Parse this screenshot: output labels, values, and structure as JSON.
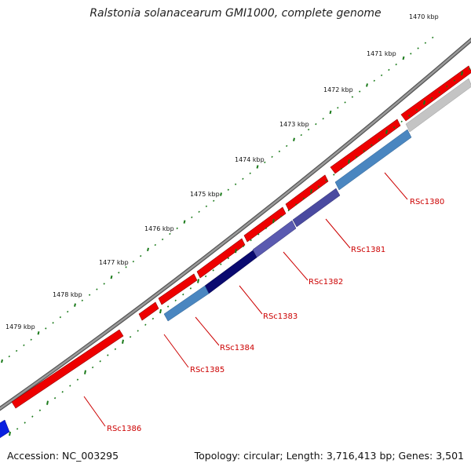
{
  "header": {
    "title": "Ralstonia solanacearum GMI1000, complete genome"
  },
  "footer": {
    "accession": "Accession: NC_003295",
    "summary": "Topology: circular; Length: 3,716,413 bp; Genes: 3,501"
  },
  "scale": {
    "ticks": [
      "1470 kbp",
      "1471 kbp",
      "1472 kbp",
      "1473 kbp",
      "1474 kbp",
      "1475 kbp",
      "1476 kbp",
      "1477 kbp",
      "1478 kbp",
      "1479 kbp"
    ]
  },
  "genes": {
    "labels": [
      "RSc1380",
      "RSc1381",
      "RSc1382",
      "RSc1383",
      "RSc1384",
      "RSc1385",
      "RSc1386"
    ]
  },
  "colors": {
    "backbone": "#8c8c8c",
    "forward_gene": "#ee0000",
    "cog_steelblue": "#4a86c0",
    "cog_slateblue": "#4a4aa0",
    "cog_navy": "#0a0a70",
    "cog_grey": "#c4c4c4",
    "cog_blue": "#0a20e0",
    "tick_dots": "#1a7a1a",
    "label_red": "#cc0000"
  }
}
